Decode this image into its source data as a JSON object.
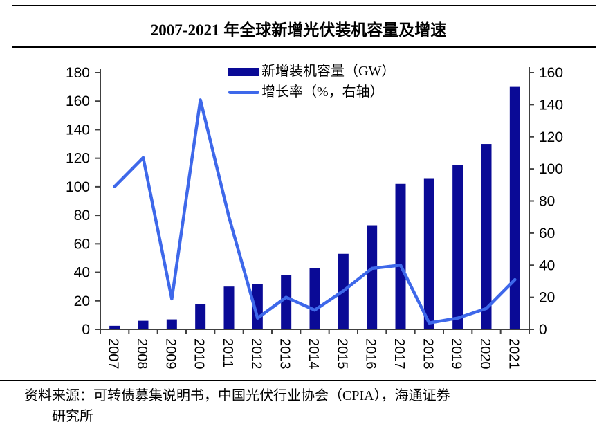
{
  "title": "2007-2021 年全球新增光伏装机容量及增速",
  "legend": {
    "items": [
      {
        "label": "新增装机容量（GW）",
        "swatch": "bar-swatch"
      },
      {
        "label": "增长率（%，右轴）",
        "swatch": "line-swatch"
      }
    ]
  },
  "colors": {
    "bar": "#0a0a96",
    "line": "#3e68ea",
    "axis": "#404040",
    "tick_text": "#000000"
  },
  "chart_data": {
    "type": "bar",
    "subtype": "bar+line combo, dual axis",
    "title": "2007-2021 年全球新增光伏装机容量及增速",
    "categories": [
      "2007",
      "2008",
      "2009",
      "2010",
      "2011",
      "2012",
      "2013",
      "2014",
      "2015",
      "2016",
      "2017",
      "2018",
      "2019",
      "2020",
      "2021"
    ],
    "series": [
      {
        "name": "新增装机容量（GW）",
        "type": "bar",
        "axis": "left",
        "values": [
          2.5,
          6,
          7,
          17.5,
          30,
          32,
          38,
          43,
          53,
          73,
          102,
          106,
          115,
          130,
          170
        ]
      },
      {
        "name": "增长率（%，右轴）",
        "type": "line",
        "axis": "right",
        "values": [
          89,
          107,
          19,
          143,
          70,
          7,
          20,
          12,
          24,
          38,
          40,
          4,
          7,
          13,
          31
        ]
      }
    ],
    "left_axis": {
      "min": 0,
      "max": 180,
      "step": 20,
      "ticks": [
        0,
        20,
        40,
        60,
        80,
        100,
        120,
        140,
        160,
        180
      ]
    },
    "right_axis": {
      "min": 0,
      "max": 160,
      "step": 20,
      "ticks": [
        0,
        20,
        40,
        60,
        80,
        100,
        120,
        140,
        160
      ]
    },
    "grid": false,
    "legend_position": "top-center",
    "x_tick_label_rotation_deg": 90
  },
  "footer": {
    "line1": "资料来源：可转债募集说明书，中国光伏行业协会（CPIA），海通证券",
    "line2": "研究所"
  }
}
